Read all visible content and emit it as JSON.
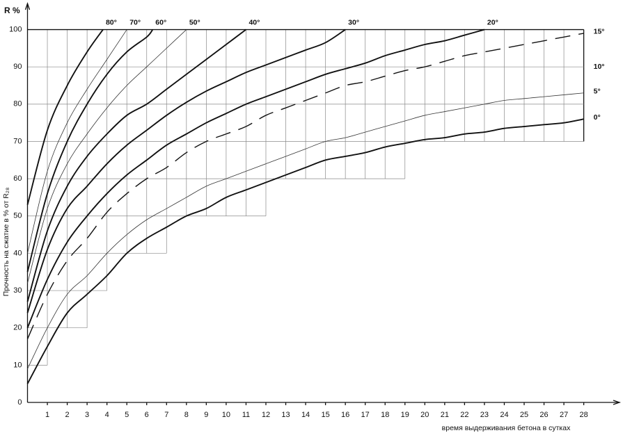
{
  "chart_data": {
    "type": "line",
    "y_unit_label": "R %",
    "ylabel": "Прочность на сжатие в % от R₂₈",
    "xlabel": "время выдерживания бетона в сутках",
    "xlim": [
      0,
      29.8
    ],
    "ylim": [
      0,
      107
    ],
    "xticks": [
      1,
      2,
      3,
      4,
      5,
      6,
      7,
      8,
      9,
      10,
      11,
      12,
      13,
      14,
      15,
      16,
      17,
      18,
      19,
      20,
      21,
      22,
      23,
      24,
      25,
      26,
      27,
      28
    ],
    "yticks": [
      0,
      10,
      20,
      30,
      40,
      50,
      60,
      70,
      80,
      90,
      100
    ],
    "grid": "staircase",
    "series": [
      {
        "name": "80°",
        "color": "#111",
        "line_style": "thick",
        "label_at": "top",
        "x": [
          0,
          1,
          2,
          3,
          3.8
        ],
        "values": [
          53,
          73,
          85,
          94,
          100
        ]
      },
      {
        "name": "70°",
        "color": "#333",
        "line_style": "thin",
        "label_at": "top",
        "x": [
          0,
          1,
          2,
          3,
          4,
          5
        ],
        "values": [
          40,
          62,
          75,
          84,
          92,
          100
        ]
      },
      {
        "name": "60°",
        "color": "#111",
        "line_style": "thick",
        "label_at": "top",
        "x": [
          0,
          1,
          2,
          3,
          4,
          5,
          6,
          6.3
        ],
        "values": [
          35,
          56,
          70,
          80,
          88,
          94,
          98,
          100
        ]
      },
      {
        "name": "50°",
        "color": "#333",
        "line_style": "thin",
        "label_at": "top",
        "x": [
          0,
          1,
          2,
          3,
          4,
          5,
          6,
          7,
          8
        ],
        "values": [
          32,
          52,
          64,
          72,
          79,
          85,
          90,
          95,
          100
        ]
      },
      {
        "name": "40°",
        "color": "#111",
        "line_style": "thick",
        "label_at": "top",
        "x": [
          0,
          1,
          2,
          3,
          4,
          5,
          6,
          7,
          8,
          9,
          10,
          11
        ],
        "values": [
          27,
          46,
          58,
          66,
          72,
          77,
          80,
          84,
          88,
          92,
          96,
          100
        ]
      },
      {
        "name": "30°",
        "color": "#111",
        "line_style": "thick",
        "label_at": "top",
        "x": [
          0,
          1,
          2,
          3,
          4,
          5,
          6,
          7,
          8,
          9,
          10,
          11,
          12,
          13,
          14,
          15,
          16
        ],
        "values": [
          24,
          41,
          52,
          58,
          64,
          69,
          73,
          77,
          80.5,
          83.5,
          86,
          88.5,
          90.5,
          92.5,
          94.5,
          96.5,
          100
        ]
      },
      {
        "name": "20°",
        "color": "#111",
        "line_style": "thick",
        "label_at": "top",
        "x": [
          0,
          1,
          2,
          3,
          4,
          5,
          6,
          7,
          8,
          9,
          10,
          11,
          12,
          13,
          14,
          15,
          16,
          17,
          18,
          19,
          20,
          21,
          22,
          23
        ],
        "values": [
          20,
          33,
          43,
          50,
          56,
          61,
          65,
          69,
          72,
          75,
          77.5,
          80,
          82,
          84,
          86,
          88,
          89.5,
          91,
          93,
          94.5,
          96,
          97,
          98.5,
          100
        ]
      },
      {
        "name": "15°",
        "color": "#111",
        "line_style": "dashed",
        "label_at": "right",
        "x": [
          0,
          1,
          2,
          3,
          4,
          5,
          6,
          7,
          8,
          9,
          10,
          11,
          12,
          13,
          14,
          15,
          16,
          17,
          18,
          19,
          20,
          21,
          22,
          23,
          24,
          25,
          26,
          27,
          28
        ],
        "values": [
          17,
          29,
          38,
          44,
          51,
          56,
          60,
          63,
          67,
          70,
          72,
          74,
          77,
          79,
          81,
          83,
          85,
          86,
          87.5,
          89,
          90,
          91.5,
          93,
          94,
          95,
          96,
          97,
          98,
          99
        ]
      },
      {
        "name": "5°",
        "color": "#333",
        "line_style": "thin",
        "label_at": "right",
        "x": [
          0,
          1,
          2,
          3,
          4,
          5,
          6,
          7,
          8,
          9,
          10,
          11,
          12,
          13,
          14,
          15,
          16,
          17,
          18,
          19,
          20,
          21,
          22,
          23,
          24,
          25,
          26,
          27,
          28
        ],
        "values": [
          9,
          20,
          29,
          34,
          40,
          45,
          49,
          52,
          55,
          58,
          60,
          62,
          64,
          66,
          68,
          70,
          71,
          72.5,
          74,
          75.5,
          77,
          78,
          79,
          80,
          81,
          81.5,
          82,
          82.5,
          83
        ]
      },
      {
        "name": "0°",
        "color": "#111",
        "line_style": "thick",
        "label_at": "right",
        "x": [
          0,
          1,
          2,
          3,
          4,
          5,
          6,
          7,
          8,
          9,
          10,
          11,
          12,
          13,
          14,
          15,
          16,
          17,
          18,
          19,
          20,
          21,
          22,
          23,
          24,
          25,
          26,
          27,
          28
        ],
        "values": [
          5,
          15,
          24,
          29,
          34,
          40,
          44,
          47,
          50,
          52,
          55,
          57,
          59,
          61,
          63,
          65,
          66,
          67,
          68.5,
          69.5,
          70.5,
          71,
          72,
          72.5,
          73.5,
          74,
          74.5,
          75,
          76
        ]
      }
    ],
    "annotations": [
      {
        "text": "10°",
        "x": 28,
        "y": 90
      }
    ]
  }
}
